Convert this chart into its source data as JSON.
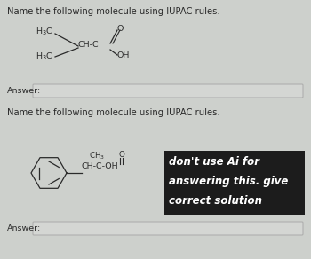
{
  "bg_color": "#cdd0cc",
  "title1": "Name the following molecule using IUPAC rules.",
  "title2": "Name the following molecule using IUPAC rules.",
  "answer_label1": "Answer:",
  "answer_label2": "Answer:",
  "box_color": "#1c1c1c",
  "box_text_line1": "don't use Ai for",
  "box_text_line2": "answering this. give",
  "box_text_line3": "correct solution",
  "box_text_color": "#ffffff",
  "text_color": "#2a2a2a",
  "line_color": "#2a2a2a",
  "answer_box_color": "#d4d6d3",
  "answer_border_color": "#aaaaaa",
  "font_size_title": 7.2,
  "font_size_chem": 6.8,
  "font_size_answer": 6.8,
  "font_size_box": 8.5
}
